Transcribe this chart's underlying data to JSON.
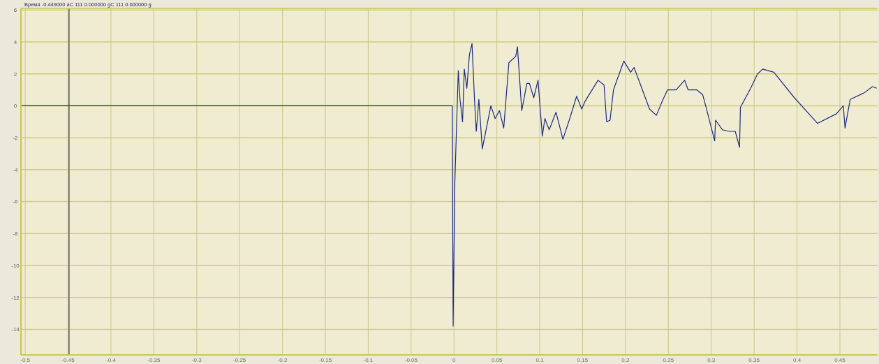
{
  "chart_data": {
    "type": "line",
    "title": "Время -0.449000 aC 111 0.000000 gC 111 0.000000 g",
    "xlim": [
      -0.505,
      0.494
    ],
    "xticks": [
      -0.5,
      -0.45,
      -0.4,
      -0.35,
      -0.3,
      -0.25,
      -0.2,
      -0.15,
      -0.1,
      -0.05,
      0,
      0.05,
      0.1,
      0.15,
      0.2,
      0.25,
      0.3,
      0.35,
      0.4,
      0.45
    ],
    "ylim": [
      -15.6,
      6.1
    ],
    "yticks": [
      -14,
      -12,
      -10,
      -8,
      -6,
      -4,
      -2,
      0,
      2,
      4,
      6
    ],
    "grid": true,
    "marker": "none",
    "line_style": "solid",
    "ref_lines": [
      {
        "axis": "x",
        "value": -0.449,
        "color": "#7a7a70"
      }
    ],
    "series": [
      {
        "color": "#1c2a80",
        "x": [
          -0.505,
          -0.3,
          -0.002,
          -0.001,
          0.001,
          0.005,
          0.007,
          0.01,
          0.012,
          0.015,
          0.018,
          0.021,
          0.024,
          0.026,
          0.029,
          0.033,
          0.043,
          0.048,
          0.053,
          0.058,
          0.064,
          0.072,
          0.074,
          0.079,
          0.085,
          0.088,
          0.093,
          0.098,
          0.103,
          0.106,
          0.111,
          0.119,
          0.127,
          0.135,
          0.143,
          0.149,
          0.153,
          0.168,
          0.175,
          0.178,
          0.182,
          0.186,
          0.198,
          0.206,
          0.21,
          0.228,
          0.236,
          0.243,
          0.249,
          0.259,
          0.269,
          0.273,
          0.283,
          0.29,
          0.295,
          0.304,
          0.305,
          0.313,
          0.321,
          0.328,
          0.333,
          0.334,
          0.346,
          0.354,
          0.36,
          0.373,
          0.397,
          0.424,
          0.446,
          0.454,
          0.456,
          0.462,
          0.478,
          0.488,
          0.493
        ],
        "values": [
          0,
          0,
          0,
          -13.8,
          -4.8,
          2.2,
          0.4,
          -1.0,
          2.3,
          1.1,
          3.2,
          3.9,
          0.3,
          -1.6,
          0.4,
          -2.7,
          0,
          -0.8,
          -0.3,
          -1.4,
          2.7,
          3.1,
          3.7,
          -0.3,
          1.4,
          1.4,
          0.5,
          1.6,
          -1.9,
          -0.8,
          -1.5,
          -0.4,
          -2.1,
          -0.8,
          0.6,
          -0.2,
          0.3,
          1.6,
          1.3,
          -1.0,
          -0.9,
          1.0,
          2.8,
          2.1,
          2.4,
          -0.2,
          -0.6,
          0.3,
          1.0,
          1.0,
          1.6,
          1.0,
          1.0,
          0.7,
          -0.3,
          -2.2,
          -0.9,
          -1.5,
          -1.6,
          -1.6,
          -2.6,
          -0.1,
          1.1,
          2.0,
          2.3,
          2.1,
          0.5,
          -1.1,
          -0.5,
          0,
          -1.4,
          0.4,
          0.8,
          1.2,
          1.1
        ]
      }
    ]
  }
}
